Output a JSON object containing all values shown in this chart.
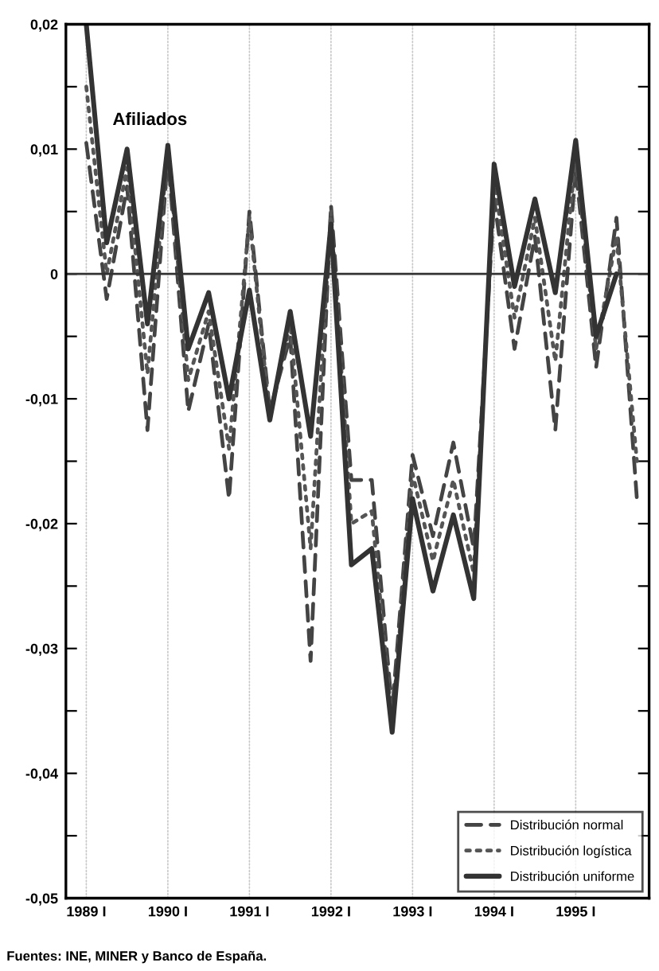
{
  "chart_data": {
    "type": "line",
    "x": [
      1989,
      1989.25,
      1989.5,
      1989.75,
      1990,
      1990.25,
      1990.5,
      1990.75,
      1991,
      1991.25,
      1991.5,
      1991.75,
      1992,
      1992.25,
      1992.5,
      1992.75,
      1993,
      1993.25,
      1993.5,
      1993.75,
      1994,
      1994.25,
      1994.5,
      1994.75,
      1995,
      1995.25,
      1995.5,
      1995.75
    ],
    "series": [
      {
        "name": "Distribución normal",
        "color": "#444444",
        "line_style": "dashed",
        "values": [
          0.0105,
          -0.002,
          0.007,
          -0.0125,
          0.0095,
          -0.011,
          -0.004,
          -0.018,
          0.005,
          -0.011,
          -0.005,
          -0.031,
          0.0055,
          -0.0165,
          -0.0165,
          -0.035,
          -0.0145,
          -0.021,
          -0.0135,
          -0.022,
          0.006,
          -0.006,
          0.003,
          -0.0125,
          0.0085,
          -0.0075,
          0.0045,
          -0.018
        ]
      },
      {
        "name": "Distribución logística",
        "color": "#555555",
        "line_style": "dotted",
        "values": [
          0.015,
          0.0,
          0.0085,
          -0.008,
          0.01,
          -0.0085,
          -0.003,
          -0.014,
          0.0045,
          -0.0115,
          -0.004,
          -0.022,
          0.005,
          -0.02,
          -0.019,
          -0.036,
          -0.016,
          -0.023,
          -0.0165,
          -0.024,
          0.0075,
          -0.0035,
          0.0045,
          -0.007,
          0.0095,
          -0.006,
          0.003,
          -0.015
        ]
      },
      {
        "name": "Distribución uniforme",
        "color": "#333333",
        "line_style": "solid",
        "values": [
          0.02,
          0.0025,
          0.01,
          -0.004,
          0.0103,
          -0.006,
          -0.0015,
          -0.01,
          -0.0013,
          -0.0117,
          -0.003,
          -0.013,
          0.004,
          -0.0233,
          -0.022,
          -0.0367,
          -0.018,
          -0.0254,
          -0.0193,
          -0.026,
          0.0088,
          -0.001,
          0.006,
          -0.0015,
          0.0107,
          -0.005,
          0.0,
          null
        ]
      }
    ],
    "xlim": [
      1988.75,
      1995.9
    ],
    "xticks": [
      {
        "value": 1989,
        "label": "1989 I"
      },
      {
        "value": 1990,
        "label": "1990 I"
      },
      {
        "value": 1991,
        "label": "1991 I"
      },
      {
        "value": 1992,
        "label": "1992 I"
      },
      {
        "value": 1993,
        "label": "1993 I"
      },
      {
        "value": 1994,
        "label": "1994 I"
      },
      {
        "value": 1995,
        "label": "1995 I"
      }
    ],
    "ylim": [
      -0.05,
      0.02
    ],
    "yticks": [
      {
        "value": -0.05,
        "label": "-0,05"
      },
      {
        "value": -0.045,
        "label": null
      },
      {
        "value": -0.04,
        "label": "-0,04"
      },
      {
        "value": -0.035,
        "label": null
      },
      {
        "value": -0.03,
        "label": "-0,03"
      },
      {
        "value": -0.025,
        "label": null
      },
      {
        "value": -0.02,
        "label": "-0,02"
      },
      {
        "value": -0.015,
        "label": null
      },
      {
        "value": -0.01,
        "label": "-0,01"
      },
      {
        "value": -0.005,
        "label": null
      },
      {
        "value": 0,
        "label": "0"
      },
      {
        "value": 0.005,
        "label": null
      },
      {
        "value": 0.01,
        "label": "0,01"
      },
      {
        "value": 0.015,
        "label": null
      },
      {
        "value": 0.02,
        "label": "0,02"
      }
    ],
    "ref_lines": [
      {
        "axis": "y",
        "value": 0,
        "color": "#333333",
        "line_style": "solid"
      }
    ],
    "grid": "x",
    "legend": "lower right",
    "annotations": [
      "Afiliados",
      "Fuentes: INE, MINER y Banco de España."
    ]
  }
}
